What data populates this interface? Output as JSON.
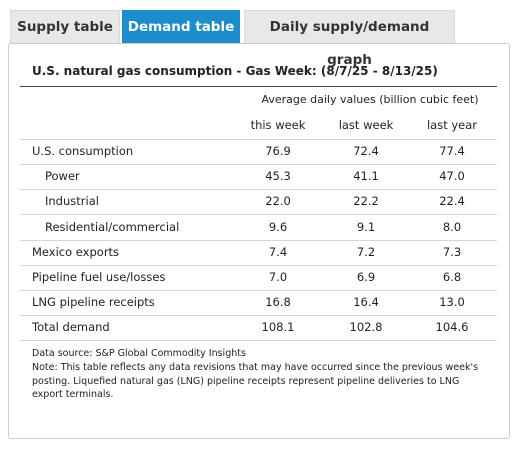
{
  "tabs": [
    "Supply table",
    "Demand table",
    "Daily supply/demand graph"
  ],
  "active_tab": 1,
  "table": {
    "title": "U.S. natural gas consumption - Gas Week: (8/7/25 - 8/13/25)",
    "group_header": "Average daily values (billion cubic feet)",
    "columns": [
      "this week",
      "last week",
      "last year"
    ],
    "rows": [
      {
        "label": "U.S. consumption",
        "indent": false,
        "values": [
          "76.9",
          "72.4",
          "77.4"
        ]
      },
      {
        "label": "Power",
        "indent": true,
        "values": [
          "45.3",
          "41.1",
          "47.0"
        ]
      },
      {
        "label": "Industrial",
        "indent": true,
        "values": [
          "22.0",
          "22.2",
          "22.4"
        ]
      },
      {
        "label": "Residential/commercial",
        "indent": true,
        "values": [
          "9.6",
          "9.1",
          "8.0"
        ]
      },
      {
        "label": "Mexico exports",
        "indent": false,
        "values": [
          "7.4",
          "7.2",
          "7.3"
        ]
      },
      {
        "label": "Pipeline fuel use/losses",
        "indent": false,
        "values": [
          "7.0",
          "6.9",
          "6.8"
        ]
      },
      {
        "label": "LNG pipeline receipts",
        "indent": false,
        "values": [
          "16.8",
          "16.4",
          "13.0"
        ]
      },
      {
        "label": "Total demand",
        "indent": false,
        "values": [
          "108.1",
          "102.8",
          "104.6"
        ]
      }
    ]
  },
  "notes": {
    "source": "Data source: S&P Global Commodity Insights",
    "note": "Note: This table reflects any data revisions that may have occurred since the previous week's posting. Liquefied natural gas (LNG) pipeline receipts represent pipeline deliveries to LNG export terminals."
  }
}
